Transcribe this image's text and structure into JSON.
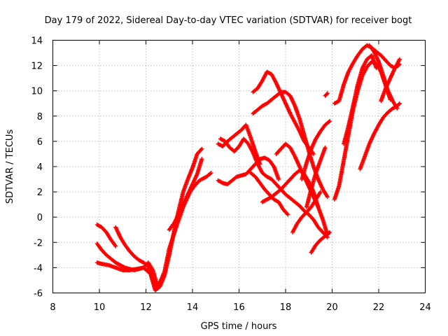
{
  "chart_data": {
    "type": "scatter",
    "title": "Day 179 of 2022, Sidereal Day-to-day VTEC variation (SDTVAR) for receiver bogt",
    "xlabel": "GPS time / hours",
    "ylabel": "SDTVAR / TECUs",
    "xlim": [
      8,
      24
    ],
    "ylim": [
      -6,
      14
    ],
    "xticks": [
      "8",
      "10",
      "12",
      "14",
      "16",
      "18",
      "20",
      "22",
      "24"
    ],
    "yticks": [
      "-6",
      "-4",
      "-2",
      "0",
      "2",
      "4",
      "6",
      "8",
      "10",
      "12",
      "14"
    ],
    "grid": true,
    "marker": "+",
    "color": "#ff0000",
    "series": [
      {
        "x": [
          9.9,
          10.1,
          10.4,
          10.7,
          11.0,
          11.3,
          11.6,
          11.9,
          12.2,
          12.4,
          12.6,
          12.8,
          13.0,
          13.3,
          13.6,
          13.9,
          14.1,
          14.3,
          14.6,
          14.8
        ],
        "y": [
          -3.6,
          -3.7,
          -3.8,
          -4.0,
          -4.2,
          -4.2,
          -4.1,
          -4.0,
          -4.5,
          -5.6,
          -5.2,
          -4.3,
          -2.5,
          -0.8,
          0.8,
          2.0,
          2.5,
          2.9,
          3.2,
          3.5
        ]
      },
      {
        "x": [
          9.9,
          10.1,
          10.3,
          10.5,
          10.7,
          10.9,
          11.1,
          11.3,
          11.5,
          11.7,
          11.9,
          12.1,
          12.3,
          12.5,
          12.7
        ],
        "y": [
          -2.1,
          -2.6,
          -3.0,
          -3.3,
          -3.6,
          -3.8,
          -4.0,
          -4.1,
          -4.2,
          -4.1,
          -4.0,
          -3.6,
          -4.2,
          -5.5,
          -4.8
        ]
      },
      {
        "x": [
          9.9,
          10.1,
          10.3,
          10.5,
          10.7
        ],
        "y": [
          -0.6,
          -0.8,
          -1.2,
          -1.8,
          -2.3
        ]
      },
      {
        "x": [
          10.7,
          10.9,
          11.1,
          11.3,
          11.5,
          11.7,
          11.9,
          12.1,
          12.3
        ],
        "y": [
          -0.8,
          -1.6,
          -2.2,
          -2.7,
          -3.1,
          -3.4,
          -3.6,
          -3.9,
          -5.0
        ]
      },
      {
        "x": [
          12.2,
          12.4,
          12.6,
          12.8,
          13.0,
          13.2,
          13.4,
          13.6,
          13.8,
          14.0,
          14.2,
          14.4
        ],
        "y": [
          -4.5,
          -5.8,
          -5.5,
          -4.6,
          -3.0,
          -1.2,
          0.5,
          2.0,
          3.0,
          3.9,
          5.0,
          5.4
        ]
      },
      {
        "x": [
          13.0,
          13.2,
          13.4,
          13.6,
          13.8,
          14.0,
          14.2,
          14.4
        ],
        "y": [
          -1.0,
          -0.5,
          0.2,
          1.0,
          1.8,
          2.6,
          3.4,
          4.6
        ]
      },
      {
        "x": [
          15.1,
          15.3,
          15.5,
          15.7,
          15.9,
          16.1,
          16.3,
          16.5,
          16.7,
          16.9
        ],
        "y": [
          5.8,
          5.6,
          6.0,
          6.3,
          6.6,
          6.9,
          7.3,
          6.3,
          5.2,
          4.2
        ]
      },
      {
        "x": [
          15.2,
          15.4,
          15.6,
          15.8,
          16.0,
          16.2,
          16.4,
          16.6,
          16.8,
          17.0,
          17.2,
          17.4,
          17.6,
          17.8,
          18.0,
          18.2,
          18.4,
          18.6,
          18.8,
          19.0,
          19.2,
          19.4,
          19.6,
          19.8
        ],
        "y": [
          6.2,
          6.0,
          5.5,
          5.2,
          5.6,
          6.2,
          5.8,
          5.1,
          4.2,
          3.5,
          3.2,
          3.0,
          2.6,
          2.2,
          1.8,
          1.5,
          1.2,
          0.9,
          0.5,
          0.2,
          -0.2,
          -0.8,
          -1.2,
          -1.6
        ]
      },
      {
        "x": [
          15.1,
          15.3,
          15.5,
          15.7,
          15.9,
          16.1,
          16.3,
          16.5,
          16.7,
          16.9,
          17.1,
          17.3,
          17.5,
          17.7
        ],
        "y": [
          2.9,
          2.7,
          2.6,
          2.9,
          3.2,
          3.3,
          3.4,
          3.8,
          4.2,
          4.6,
          4.7,
          4.5,
          4.0,
          3.0
        ]
      },
      {
        "x": [
          16.5,
          16.7,
          16.9,
          17.1,
          17.3,
          17.5,
          17.7,
          17.9,
          18.1
        ],
        "y": [
          3.5,
          3.2,
          2.7,
          2.2,
          1.8,
          1.4,
          1.2,
          0.6,
          0.2
        ]
      },
      {
        "x": [
          16.6,
          16.8,
          17.0,
          17.2,
          17.4,
          17.6,
          17.8,
          18.0,
          18.2,
          18.4,
          18.6,
          18.8,
          19.0,
          19.2
        ],
        "y": [
          9.9,
          10.2,
          10.8,
          11.5,
          11.3,
          10.6,
          9.8,
          9.0,
          8.2,
          7.5,
          6.8,
          6.0,
          5.5,
          5.0
        ]
      },
      {
        "x": [
          16.6,
          16.8,
          17.0,
          17.2,
          17.4,
          17.6,
          17.8,
          18.0,
          18.2,
          18.4,
          18.6,
          18.8,
          19.0,
          19.2,
          19.4,
          19.6,
          19.8
        ],
        "y": [
          8.2,
          8.5,
          8.8,
          9.0,
          9.3,
          9.6,
          9.9,
          9.9,
          9.6,
          8.8,
          7.8,
          6.5,
          5.2,
          4.0,
          3.0,
          2.2,
          1.6
        ]
      },
      {
        "x": [
          17.0,
          17.2,
          17.4,
          17.6,
          17.8,
          18.0,
          18.2,
          18.4,
          18.6,
          18.8,
          19.0,
          19.2,
          19.4,
          19.6,
          19.8
        ],
        "y": [
          1.2,
          1.4,
          1.6,
          1.9,
          2.2,
          2.6,
          3.0,
          3.4,
          3.7,
          3.4,
          2.8,
          2.0,
          0.8,
          -0.2,
          -1.4
        ]
      },
      {
        "x": [
          17.6,
          17.8,
          18.0,
          18.2,
          18.4,
          18.6,
          18.8,
          19.0,
          19.2,
          19.4
        ],
        "y": [
          5.0,
          5.4,
          5.8,
          5.5,
          4.8,
          4.0,
          3.2,
          2.4,
          1.6,
          0.8
        ]
      },
      {
        "x": [
          18.3,
          18.5,
          18.7,
          18.9,
          19.1,
          19.3,
          19.5
        ],
        "y": [
          -1.2,
          -0.5,
          0.0,
          0.4,
          0.8,
          1.4,
          2.0
        ]
      },
      {
        "x": [
          18.7,
          18.9,
          19.1,
          19.3,
          19.5,
          19.7,
          19.9
        ],
        "y": [
          3.0,
          4.3,
          5.4,
          6.2,
          6.8,
          7.3,
          7.6
        ]
      },
      {
        "x": [
          19.1,
          19.3,
          19.5,
          19.7,
          19.9
        ],
        "y": [
          -2.8,
          -2.2,
          -1.8,
          -1.5,
          -1.2
        ]
      },
      {
        "x": [
          18.9,
          19.1,
          19.3,
          19.5,
          19.7
        ],
        "y": [
          0.8,
          2.2,
          3.5,
          4.5,
          5.5
        ]
      },
      {
        "x": [
          19.7,
          19.8
        ],
        "y": [
          9.6,
          9.8
        ]
      },
      {
        "x": [
          20.1,
          20.3,
          20.5,
          20.7,
          20.9,
          21.1,
          21.3,
          21.5,
          21.7,
          21.9,
          22.1,
          22.3,
          22.5,
          22.7,
          22.9
        ],
        "y": [
          9.0,
          9.2,
          10.5,
          11.5,
          12.2,
          12.8,
          13.3,
          13.6,
          13.4,
          13.1,
          12.8,
          12.4,
          12.0,
          11.8,
          12.1
        ]
      },
      {
        "x": [
          20.1,
          20.3,
          20.5,
          20.7,
          20.9,
          21.1,
          21.3,
          21.5,
          21.7,
          21.9,
          22.1,
          22.3,
          22.5
        ],
        "y": [
          1.4,
          2.5,
          4.5,
          6.5,
          8.5,
          10.0,
          11.2,
          11.9,
          12.3,
          12.1,
          11.5,
          10.4,
          9.3
        ]
      },
      {
        "x": [
          20.5,
          20.7,
          20.9,
          21.1,
          21.3,
          21.5,
          21.7,
          21.9
        ],
        "y": [
          5.8,
          7.2,
          8.8,
          10.5,
          11.8,
          12.5,
          12.8,
          11.8
        ]
      },
      {
        "x": [
          21.6,
          21.8,
          22.0,
          22.2,
          22.4,
          22.6,
          22.8
        ],
        "y": [
          13.6,
          13.1,
          12.3,
          11.2,
          10.0,
          9.2,
          8.6
        ]
      },
      {
        "x": [
          22.1,
          22.3,
          22.5,
          22.7,
          22.9
        ],
        "y": [
          9.2,
          10.2,
          11.0,
          11.8,
          12.5
        ]
      },
      {
        "x": [
          21.2,
          21.4,
          21.6,
          21.8,
          22.0,
          22.2,
          22.4,
          22.6,
          22.8,
          22.9
        ],
        "y": [
          3.8,
          4.8,
          5.8,
          6.6,
          7.3,
          7.9,
          8.3,
          8.6,
          8.8,
          9.0
        ]
      }
    ]
  }
}
